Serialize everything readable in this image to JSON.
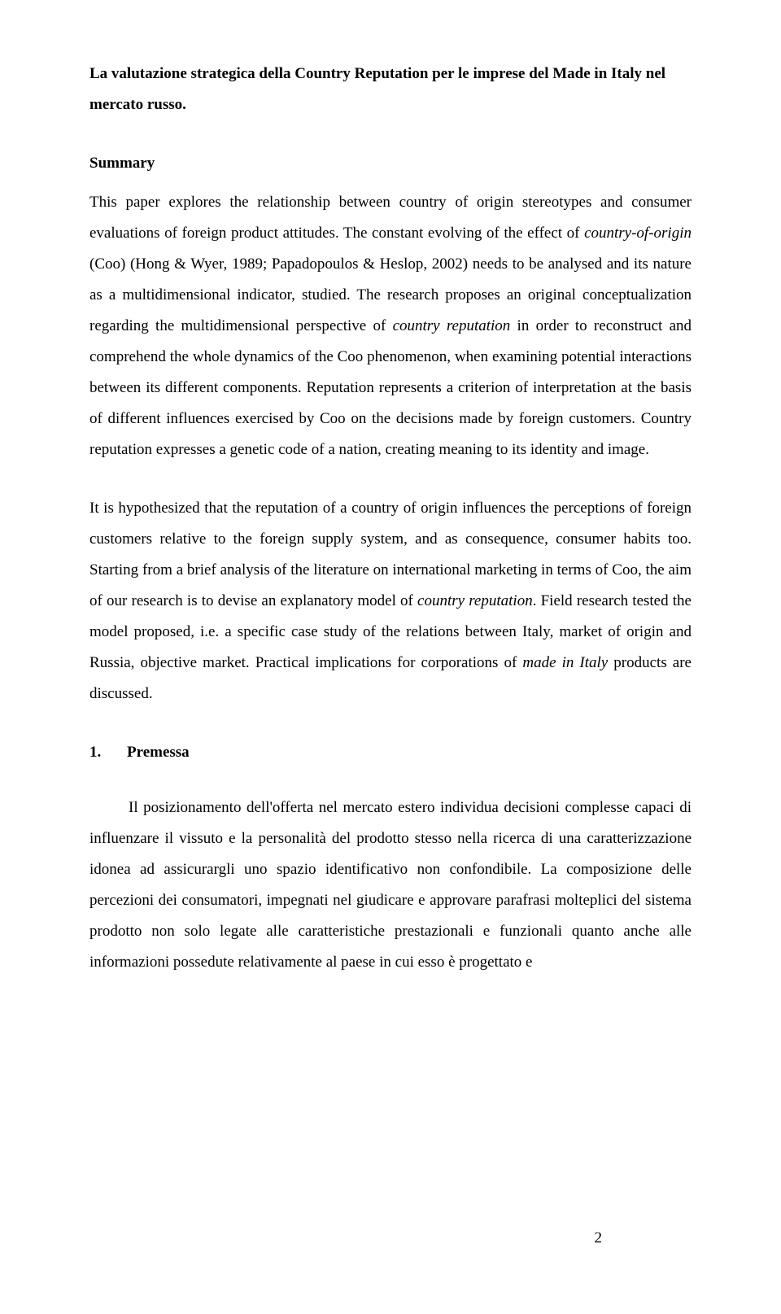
{
  "title_line1": "La valutazione strategica della Country Reputation per le imprese del Made in Italy nel",
  "title_line2": "mercato russo.",
  "summary_heading": "Summary",
  "summary_pre": "This paper explores the relationship between country of origin stereotypes and consumer evaluations of foreign product attitudes. The constant evolving of the effect of ",
  "summary_coo_it": "country-of-origin",
  "summary_mid1": " (Coo) (Hong & Wyer, 1989; Papadopoulos & Heslop, 2002) needs to be analysed and its nature as a multidimensional indicator, studied. The research proposes an original conceptualization regarding the multidimensional perspective of ",
  "summary_cr_it": "country reputation",
  "summary_mid2": " in order to reconstruct and comprehend the whole dynamics of the Coo phenomenon, when examining potential interactions between its different components. Reputation represents a criterion of interpretation at the basis of different influences exercised by Coo on the decisions made by foreign customers. Country reputation expresses a genetic code of a nation, creating meaning to its identity and image.",
  "summary2_pre": "It is hypothesized that the reputation of a country of origin influences the perceptions of foreign customers relative to the foreign supply system, and as consequence, consumer habits too. Starting from a brief analysis of the literature on international marketing in terms of Coo, the aim of our research is to devise an explanatory model of ",
  "summary2_cr_it": "country reputation",
  "summary2_mid": ". Field research tested the model proposed, i.e. a specific case study of the relations between Italy, market of origin and Russia, objective market. Practical implications for corporations of ",
  "summary2_mii_it": "made in Italy",
  "summary2_post": " products are discussed.",
  "section_num": "1.",
  "section_title": "Premessa",
  "premessa_body": "Il posizionamento dell'offerta nel mercato estero individua decisioni complesse capaci di influenzare il vissuto e la personalità del prodotto stesso nella ricerca di una caratterizzazione idonea ad assicurargli uno spazio identificativo non confondibile. La composizione delle percezioni dei consumatori, impegnati nel giudicare e approvare parafrasi molteplici del sistema prodotto non solo legate alle caratteristiche prestazionali e funzionali quanto anche alle informazioni possedute relativamente al paese in cui esso è progettato e",
  "page_number": "2"
}
